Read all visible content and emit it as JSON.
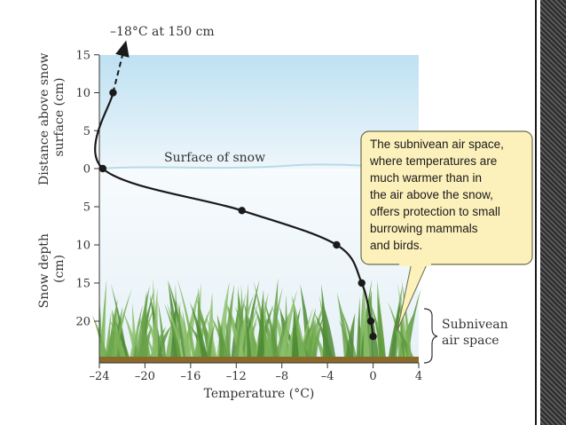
{
  "chart_data": {
    "type": "line",
    "x_axis": {
      "label": "Temperature (°C)",
      "ticks": [
        -24,
        -20,
        -16,
        -12,
        -8,
        -4,
        0,
        4
      ],
      "tick_labels": [
        "–24",
        "–20",
        "–16",
        "–12",
        "–8",
        "–4",
        "0",
        "4"
      ],
      "range": [
        -24,
        4
      ]
    },
    "y_axis_above": {
      "label": "Distance above snow surface (cm)",
      "label_lines": [
        "Distance above snow",
        "surface (cm)"
      ],
      "ticks": [
        0,
        5,
        10,
        15
      ],
      "tick_labels": [
        "0",
        "5",
        "10",
        "15"
      ]
    },
    "y_axis_below": {
      "label": "Snow depth (cm)",
      "label_lines": [
        "Snow depth",
        "(cm)"
      ],
      "ticks": [
        5,
        10,
        15,
        20
      ],
      "tick_labels": [
        "5",
        "10",
        "15",
        "20"
      ]
    },
    "points": [
      {
        "temp": -22.8,
        "height": 10
      },
      {
        "temp": -23.7,
        "height": 0
      },
      {
        "temp": -11.5,
        "height": -5.5
      },
      {
        "temp": -3.2,
        "height": -10
      },
      {
        "temp": -1.0,
        "height": -15
      },
      {
        "temp": -0.2,
        "height": -20
      },
      {
        "temp": 0.0,
        "height": -22
      }
    ],
    "extrapolated_to": {
      "temp": -21.8,
      "height": 16
    },
    "annotations": {
      "top_arrow": "–18°C at 150 cm",
      "snow_surface": "Surface of snow",
      "callout_lines": [
        "The subnivean air space,",
        "where temperatures are",
        "much warmer than in",
        "the air above the snow,",
        "offers protection to small",
        "burrowing mammals",
        "and birds."
      ],
      "bracket_lines": [
        "Subnivean",
        "air space"
      ]
    }
  },
  "colors": {
    "sky_top": "#bfe1f2",
    "sky_bottom": "#eaf5fb",
    "snow": "#f3f8fb",
    "grass": "#6aa24a",
    "callout_fill": "#fcf0bb",
    "callout_stroke": "#6b6b4a",
    "line": "#1a1a1a"
  }
}
